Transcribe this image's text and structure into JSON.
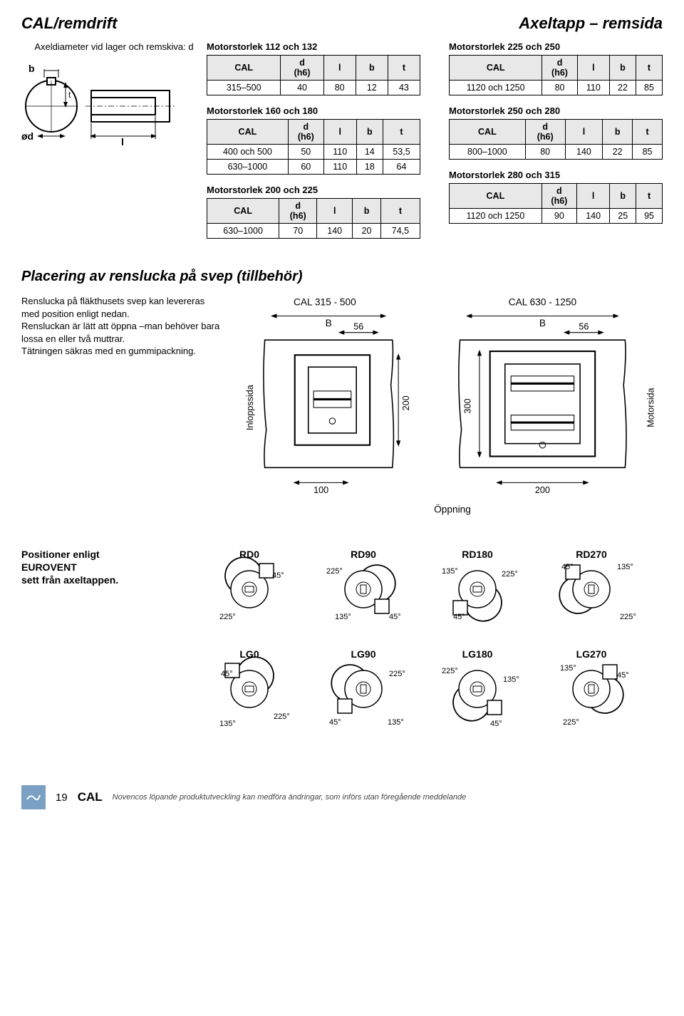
{
  "header": {
    "left": "CAL/remdrift",
    "right": "Axeltapp – remsida"
  },
  "shaft": {
    "title": "Axeldiameter vid lager och remskiva: d",
    "labels": {
      "b": "b",
      "d": "ød",
      "l": "l",
      "t": "t"
    }
  },
  "tables": {
    "headers": [
      "CAL",
      "d\n(h6)",
      "l",
      "b",
      "t"
    ],
    "t112": {
      "caption": "Motorstorlek 112 och 132",
      "rows": [
        [
          "315–500",
          "40",
          "80",
          "12",
          "43"
        ]
      ]
    },
    "t160": {
      "caption": "Motorstorlek 160 och 180",
      "rows": [
        [
          "400 och 500",
          "50",
          "110",
          "14",
          "53,5"
        ],
        [
          "630–1000",
          "60",
          "110",
          "18",
          "64"
        ]
      ]
    },
    "t200": {
      "caption": "Motorstorlek 200 och 225",
      "rows": [
        [
          "630–1000",
          "70",
          "140",
          "20",
          "74,5"
        ]
      ]
    },
    "t225": {
      "caption": "Motorstorlek 225 och 250",
      "rows": [
        [
          "1120 och 1250",
          "80",
          "110",
          "22",
          "85"
        ]
      ]
    },
    "t250": {
      "caption": "Motorstorlek 250 och 280",
      "rows": [
        [
          "800–1000",
          "80",
          "140",
          "22",
          "85"
        ]
      ]
    },
    "t280": {
      "caption": "Motorstorlek 280 och 315",
      "rows": [
        [
          "1120 och 1250",
          "90",
          "140",
          "25",
          "95"
        ]
      ]
    }
  },
  "renslucka": {
    "title": "Placering av renslucka på svep (tillbehör)",
    "para1": "Renslucka på fläkthusets svep kan levereras med position enligt nedan.",
    "para2": "Rensluckan är lätt att öppna –man behöver bara lossa en eller två muttrar.",
    "para3": "Tätningen säkras med en gummipackning.",
    "diagram": {
      "left_caption": "CAL 315 - 500",
      "right_caption": "CAL 630 - 1250",
      "B": "B",
      "v56": "56",
      "v200": "200",
      "v300": "300",
      "v100": "100",
      "v200b": "200",
      "inlopp": "Inloppssida",
      "motor": "Motorsida",
      "oppning": "Öppning"
    }
  },
  "positions": {
    "title1": "Positioner enligt",
    "title2": "EUROVENT",
    "title3": "sett från axeltappen.",
    "rd": [
      "RD0",
      "RD90",
      "RD180",
      "RD270"
    ],
    "lg": [
      "LG0",
      "LG90",
      "LG180",
      "LG270"
    ],
    "angles": [
      "45°",
      "135°",
      "225°"
    ]
  },
  "footer": {
    "page": "19",
    "cal": "CAL",
    "note": "Novencos löpande produktutveckling kan medföra ändringar, som införs utan föregående meddelande"
  },
  "colors": {
    "stroke": "#000000",
    "fillgrey": "#e8e8e8",
    "logobg": "#7aa0c4"
  }
}
